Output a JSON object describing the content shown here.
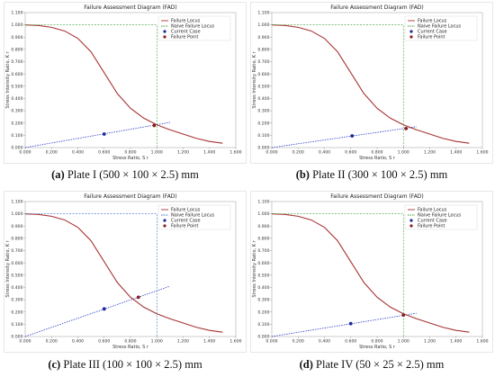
{
  "chart_data": [
    {
      "type": "line",
      "title": "Failure Assessment Diagram (FAD)",
      "xlabel": "Stress Ratio, S r",
      "ylabel": "Stress Intensity Ratio, K r",
      "xlim": [
        0,
        1.6
      ],
      "ylim": [
        0,
        1.1
      ],
      "xticks": [
        "0.000",
        "0.200",
        "0.400",
        "0.600",
        "0.800",
        "1.000",
        "1.200",
        "1.400",
        "1.600"
      ],
      "yticks": [
        "0.000",
        "0.100",
        "0.200",
        "0.300",
        "0.400",
        "0.500",
        "0.600",
        "0.700",
        "0.800",
        "0.900",
        "1.000",
        "1.100"
      ],
      "grid": false,
      "legend_position": "top-right",
      "series": [
        {
          "name": "Failure Locus",
          "style": "solid",
          "color": "#a83232",
          "x": [
            0,
            0.1,
            0.2,
            0.3,
            0.4,
            0.5,
            0.6,
            0.7,
            0.8,
            0.9,
            1.0,
            1.1,
            1.2,
            1.3,
            1.4,
            1.5
          ],
          "y": [
            1.0,
            0.995,
            0.98,
            0.95,
            0.89,
            0.78,
            0.61,
            0.44,
            0.32,
            0.24,
            0.185,
            0.145,
            0.11,
            0.075,
            0.05,
            0.035
          ]
        },
        {
          "name": "Naive Failure Locus",
          "style": "dashed",
          "color": "#3aa03a",
          "x": [
            0,
            1.0,
            1.0
          ],
          "y": [
            1.0,
            1.0,
            0.0
          ]
        },
        {
          "name": "Current Case",
          "style": "point",
          "color": "#1a2a9a",
          "x": [
            0.6
          ],
          "y": [
            0.11
          ]
        },
        {
          "name": "Failure Point",
          "style": "point",
          "color": "#8a1e1e",
          "x": [
            0.98
          ],
          "y": [
            0.18
          ]
        }
      ],
      "load_line": {
        "x": [
          0,
          1.1
        ],
        "y": [
          0,
          0.205
        ]
      }
    },
    {
      "type": "line",
      "title": "Failure Assessment Diagram (FAD)",
      "xlabel": "Stress Ratio, S r",
      "ylabel": "Stress Intensity Ratio, K r",
      "xlim": [
        0,
        1.6
      ],
      "ylim": [
        0,
        1.1
      ],
      "xticks": [
        "0.000",
        "0.200",
        "0.400",
        "0.600",
        "0.800",
        "1.000",
        "1.200",
        "1.400",
        "1.600"
      ],
      "yticks": [
        "0.000",
        "0.100",
        "0.200",
        "0.300",
        "0.400",
        "0.500",
        "0.600",
        "0.700",
        "0.800",
        "0.900",
        "1.000",
        "1.100"
      ],
      "grid": false,
      "legend_position": "top-right",
      "series": [
        {
          "name": "Failure Locus",
          "style": "solid",
          "color": "#a83232",
          "x": [
            0,
            0.1,
            0.2,
            0.3,
            0.4,
            0.5,
            0.6,
            0.7,
            0.8,
            0.9,
            1.0,
            1.1,
            1.2,
            1.3,
            1.4,
            1.5
          ],
          "y": [
            1.0,
            0.995,
            0.98,
            0.95,
            0.89,
            0.78,
            0.61,
            0.44,
            0.32,
            0.24,
            0.185,
            0.145,
            0.11,
            0.075,
            0.05,
            0.035
          ]
        },
        {
          "name": "Naive Failure Locus",
          "style": "dashed",
          "color": "#3aa03a",
          "x": [
            0,
            1.0,
            1.0
          ],
          "y": [
            1.0,
            1.0,
            0.0
          ]
        },
        {
          "name": "Current Case",
          "style": "point",
          "color": "#1a2a9a",
          "x": [
            0.61
          ],
          "y": [
            0.095
          ]
        },
        {
          "name": "Failure Point",
          "style": "point",
          "color": "#8a1e1e",
          "x": [
            1.02
          ],
          "y": [
            0.155
          ]
        }
      ],
      "load_line": {
        "x": [
          0,
          1.1
        ],
        "y": [
          0,
          0.17
        ]
      }
    },
    {
      "type": "line",
      "title": "Failure Assessment Diagram (FAD)",
      "xlabel": "Stress Ratio, S r",
      "ylabel": "Stress Intensity Ratio, K r",
      "xlim": [
        0,
        1.6
      ],
      "ylim": [
        0,
        1.1
      ],
      "xticks": [
        "0.000",
        "0.200",
        "0.400",
        "0.600",
        "0.800",
        "1.000",
        "1.200",
        "1.400",
        "1.600"
      ],
      "yticks": [
        "0.000",
        "0.100",
        "0.200",
        "0.300",
        "0.400",
        "0.500",
        "0.600",
        "0.700",
        "0.800",
        "0.900",
        "1.000",
        "1.100"
      ],
      "grid": false,
      "legend_position": "top-right",
      "series": [
        {
          "name": "Failure Locus",
          "style": "solid",
          "color": "#a83232",
          "x": [
            0,
            0.1,
            0.2,
            0.3,
            0.4,
            0.5,
            0.6,
            0.7,
            0.8,
            0.9,
            1.0,
            1.1,
            1.2,
            1.3,
            1.4,
            1.5
          ],
          "y": [
            1.0,
            0.995,
            0.98,
            0.95,
            0.89,
            0.78,
            0.61,
            0.44,
            0.32,
            0.24,
            0.185,
            0.145,
            0.11,
            0.075,
            0.05,
            0.035
          ]
        },
        {
          "name": "Naive Failure Locus",
          "style": "dashed",
          "color": "#3a6ad0",
          "x": [
            0,
            1.0,
            1.0
          ],
          "y": [
            1.0,
            1.0,
            0.0
          ]
        },
        {
          "name": "Current Case",
          "style": "point",
          "color": "#1a2a9a",
          "x": [
            0.6
          ],
          "y": [
            0.225
          ]
        },
        {
          "name": "Failure Point",
          "style": "point",
          "color": "#8a1e1e",
          "x": [
            0.86
          ],
          "y": [
            0.32
          ]
        }
      ],
      "load_line": {
        "x": [
          0,
          1.1
        ],
        "y": [
          0,
          0.41
        ]
      }
    },
    {
      "type": "line",
      "title": "Failure Assessment Diagram (FAD)",
      "xlabel": "Stress Ratio, S r",
      "ylabel": "Stress Intensity Ratio, K r",
      "xlim": [
        0,
        1.6
      ],
      "ylim": [
        0,
        1.1
      ],
      "xticks": [
        "0.000",
        "0.200",
        "0.400",
        "0.600",
        "0.800",
        "1.000",
        "1.200",
        "1.400",
        "1.600"
      ],
      "yticks": [
        "0.000",
        "0.100",
        "0.200",
        "0.300",
        "0.400",
        "0.500",
        "0.600",
        "0.700",
        "0.800",
        "0.900",
        "1.000",
        "1.100"
      ],
      "grid": false,
      "legend_position": "top-right",
      "series": [
        {
          "name": "Failure Locus",
          "style": "solid",
          "color": "#a83232",
          "x": [
            0,
            0.1,
            0.2,
            0.3,
            0.4,
            0.5,
            0.6,
            0.7,
            0.8,
            0.9,
            1.0,
            1.1,
            1.2,
            1.3,
            1.4,
            1.5
          ],
          "y": [
            1.0,
            0.995,
            0.98,
            0.95,
            0.89,
            0.78,
            0.61,
            0.44,
            0.32,
            0.24,
            0.185,
            0.145,
            0.11,
            0.075,
            0.05,
            0.035
          ]
        },
        {
          "name": "Naive Failure Locus",
          "style": "dashed",
          "color": "#3aa03a",
          "x": [
            0,
            1.0,
            1.0
          ],
          "y": [
            1.0,
            1.0,
            0.0
          ]
        },
        {
          "name": "Current Case",
          "style": "point",
          "color": "#1a2a9a",
          "x": [
            0.6
          ],
          "y": [
            0.105
          ]
        },
        {
          "name": "Failure Point",
          "style": "point",
          "color": "#8a1e1e",
          "x": [
            1.0
          ],
          "y": [
            0.175
          ]
        }
      ],
      "load_line": {
        "x": [
          0,
          1.1
        ],
        "y": [
          0,
          0.19
        ]
      }
    }
  ],
  "captions": [
    {
      "letter": "(a)",
      "text": " Plate I (500 × 100 × 2.5) mm"
    },
    {
      "letter": "(b)",
      "text": " Plate II (300 × 100 × 2.5) mm"
    },
    {
      "letter": "(c)",
      "text": " Plate III (100 × 100 × 2.5) mm"
    },
    {
      "letter": "(d)",
      "text": " Plate IV (50 × 25 × 2.5) mm"
    }
  ]
}
